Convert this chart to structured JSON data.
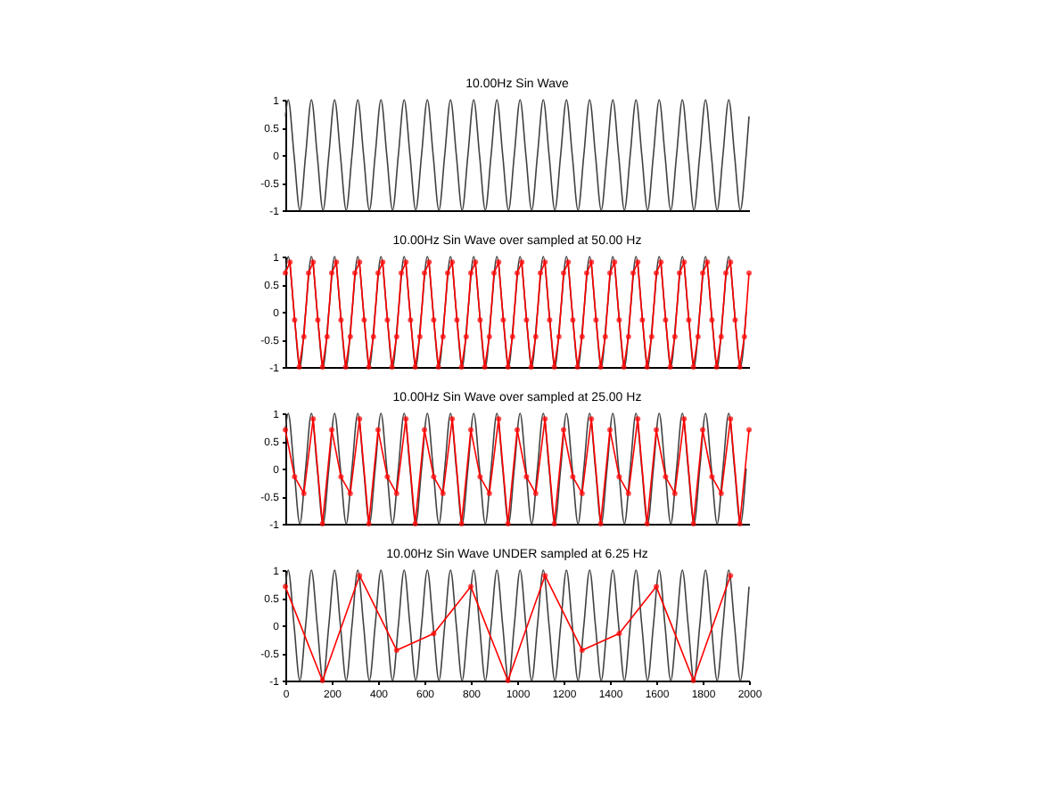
{
  "chart_data": [
    {
      "type": "line",
      "title": "10.00Hz Sin Wave",
      "xlim": [
        0,
        2000
      ],
      "ylim": [
        -1,
        1
      ],
      "yticks": [
        -1,
        -0.5,
        0,
        0.5,
        1
      ],
      "tick_labels": "y",
      "series": [
        {
          "color": "#404040",
          "marker": "none",
          "x": [
            0,
            12.5,
            37.5,
            62.5,
            87.5,
            112.5,
            137.5,
            162.5,
            187.5,
            212.5,
            237.5,
            262.5,
            287.5,
            312.5,
            337.5,
            362.5,
            387.5,
            412.5,
            437.5,
            462.5,
            487.5,
            512.5,
            537.5,
            562.5,
            587.5,
            612.5,
            637.5,
            662.5,
            687.5,
            712.5,
            737.5,
            762.5,
            787.5,
            812.5,
            837.5,
            862.5,
            887.5,
            912.5,
            937.5,
            962.5,
            987.5,
            1012.5,
            1037.5,
            1062.5,
            1087.5,
            1112.5,
            1137.5,
            1162.5,
            1187.5,
            1212.5,
            1237.5,
            1262.5,
            1287.5,
            1312.5,
            1337.5,
            1362.5,
            1387.5,
            1412.5,
            1437.5,
            1462.5,
            1487.5,
            1512.5,
            1537.5,
            1562.5,
            1587.5,
            1612.5,
            1637.5,
            1662.5,
            1687.5,
            1712.5,
            1737.5,
            1762.5,
            1787.5,
            1812.5,
            1837.5,
            1862.5,
            1887.5,
            1912.5,
            1937.5,
            1962.5,
            1987.5,
            2000
          ],
          "values": [
            0.7,
            1,
            0,
            -1,
            0,
            1,
            0,
            -1,
            0,
            1,
            0,
            -1,
            0,
            1,
            0,
            -1,
            0,
            1,
            0,
            -1,
            0,
            1,
            0,
            -1,
            0,
            1,
            0,
            -1,
            0,
            1,
            0,
            -1,
            0,
            1,
            0,
            -1,
            0,
            1,
            0,
            -1,
            0,
            1,
            0,
            -1,
            0,
            1,
            0,
            -1,
            0,
            1,
            0,
            -1,
            0,
            1,
            0,
            -1,
            0,
            1,
            0,
            -1,
            0,
            1,
            0,
            -1,
            0,
            1,
            0,
            -1,
            0,
            1,
            0,
            -1,
            0,
            1,
            0,
            -1,
            0,
            1,
            0,
            -1,
            0,
            0.7
          ]
        }
      ]
    },
    {
      "type": "line",
      "title": "10.00Hz Sin Wave over sampled at 50.00 Hz",
      "xlim": [
        0,
        2000
      ],
      "ylim": [
        -1,
        1
      ],
      "yticks": [
        -1,
        -0.5,
        0,
        0.5,
        1
      ],
      "tick_labels": "y",
      "series": [
        {
          "color": "#404040",
          "marker": "none",
          "x": [
            0,
            12.5,
            37.5,
            62.5,
            87.5,
            112.5,
            137.5,
            162.5,
            187.5,
            212.5,
            237.5,
            262.5,
            287.5,
            312.5,
            337.5,
            362.5,
            387.5,
            412.5,
            437.5,
            462.5,
            487.5,
            512.5,
            537.5,
            562.5,
            587.5,
            612.5,
            637.5,
            662.5,
            687.5,
            712.5,
            737.5,
            762.5,
            787.5,
            812.5,
            837.5,
            862.5,
            887.5,
            912.5,
            937.5,
            962.5,
            987.5,
            1012.5,
            1037.5,
            1062.5,
            1087.5,
            1112.5,
            1137.5,
            1162.5,
            1187.5,
            1212.5,
            1237.5,
            1262.5,
            1287.5,
            1312.5,
            1337.5,
            1362.5,
            1387.5,
            1412.5,
            1437.5,
            1462.5,
            1487.5,
            1512.5,
            1537.5,
            1562.5,
            1587.5,
            1612.5,
            1637.5,
            1662.5,
            1687.5,
            1712.5,
            1737.5,
            1762.5,
            1787.5,
            1812.5,
            1837.5,
            1862.5,
            1887.5,
            1912.5,
            1937.5,
            1962.5,
            1987.5
          ],
          "values": [
            0.7,
            1,
            0,
            -1,
            0,
            1,
            0,
            -1,
            0,
            1,
            0,
            -1,
            0,
            1,
            0,
            -1,
            0,
            1,
            0,
            -1,
            0,
            1,
            0,
            -1,
            0,
            1,
            0,
            -1,
            0,
            1,
            0,
            -1,
            0,
            1,
            0,
            -1,
            0,
            1,
            0,
            -1,
            0,
            1,
            0,
            -1,
            0,
            1,
            0,
            -1,
            0,
            1,
            0,
            -1,
            0,
            1,
            0,
            -1,
            0,
            1,
            0,
            -1,
            0,
            1,
            0,
            -1,
            0,
            1,
            0,
            -1,
            0,
            1,
            0,
            -1,
            0,
            1,
            0,
            -1,
            0,
            1,
            0,
            -1,
            0
          ]
        },
        {
          "color": "#ff0000",
          "marker": "circle",
          "x": [
            0,
            20,
            40,
            60,
            80,
            100,
            120,
            140,
            160,
            180,
            200,
            220,
            240,
            260,
            280,
            300,
            320,
            340,
            360,
            380,
            400,
            420,
            440,
            460,
            480,
            500,
            520,
            540,
            560,
            580,
            600,
            620,
            640,
            660,
            680,
            700,
            720,
            740,
            760,
            780,
            800,
            820,
            840,
            860,
            880,
            900,
            920,
            940,
            960,
            980,
            1000,
            1020,
            1040,
            1060,
            1080,
            1100,
            1120,
            1140,
            1160,
            1180,
            1200,
            1220,
            1240,
            1260,
            1280,
            1300,
            1320,
            1340,
            1360,
            1380,
            1400,
            1420,
            1440,
            1460,
            1480,
            1500,
            1520,
            1540,
            1560,
            1580,
            1600,
            1620,
            1640,
            1660,
            1680,
            1700,
            1720,
            1740,
            1760,
            1780,
            1800,
            1820,
            1840,
            1860,
            1880,
            1900,
            1920,
            1940,
            1960,
            1980,
            2000
          ],
          "values": [
            0.7,
            0.9,
            -0.15,
            -1,
            -0.45,
            0.7,
            0.9,
            -0.15,
            -1,
            -0.45,
            0.7,
            0.9,
            -0.15,
            -1,
            -0.45,
            0.7,
            0.9,
            -0.15,
            -1,
            -0.45,
            0.7,
            0.9,
            -0.15,
            -1,
            -0.45,
            0.7,
            0.9,
            -0.15,
            -1,
            -0.45,
            0.7,
            0.9,
            -0.15,
            -1,
            -0.45,
            0.7,
            0.9,
            -0.15,
            -1,
            -0.45,
            0.7,
            0.9,
            -0.15,
            -1,
            -0.45,
            0.7,
            0.9,
            -0.15,
            -1,
            -0.45,
            0.7,
            0.9,
            -0.15,
            -1,
            -0.45,
            0.7,
            0.9,
            -0.15,
            -1,
            -0.45,
            0.7,
            0.9,
            -0.15,
            -1,
            -0.45,
            0.7,
            0.9,
            -0.15,
            -1,
            -0.45,
            0.7,
            0.9,
            -0.15,
            -1,
            -0.45,
            0.7,
            0.9,
            -0.15,
            -1,
            -0.45,
            0.7,
            0.9,
            -0.15,
            -1,
            -0.45,
            0.7,
            0.9,
            -0.15,
            -1,
            -0.45,
            0.7,
            0.9,
            -0.15,
            -1,
            -0.45,
            0.7,
            0.9,
            -0.15,
            -1,
            -0.45,
            0.7
          ]
        }
      ]
    },
    {
      "type": "line",
      "title": "10.00Hz Sin Wave over sampled at 25.00 Hz",
      "xlim": [
        0,
        2000
      ],
      "ylim": [
        -1,
        1
      ],
      "yticks": [
        -1,
        -0.5,
        0,
        0.5,
        1
      ],
      "tick_labels": "y",
      "series": [
        {
          "color": "#404040",
          "marker": "none",
          "x": [
            0,
            12.5,
            37.5,
            62.5,
            87.5,
            112.5,
            137.5,
            162.5,
            187.5,
            212.5,
            237.5,
            262.5,
            287.5,
            312.5,
            337.5,
            362.5,
            387.5,
            412.5,
            437.5,
            462.5,
            487.5,
            512.5,
            537.5,
            562.5,
            587.5,
            612.5,
            637.5,
            662.5,
            687.5,
            712.5,
            737.5,
            762.5,
            787.5,
            812.5,
            837.5,
            862.5,
            887.5,
            912.5,
            937.5,
            962.5,
            987.5,
            1012.5,
            1037.5,
            1062.5,
            1087.5,
            1112.5,
            1137.5,
            1162.5,
            1187.5,
            1212.5,
            1237.5,
            1262.5,
            1287.5,
            1312.5,
            1337.5,
            1362.5,
            1387.5,
            1412.5,
            1437.5,
            1462.5,
            1487.5,
            1512.5,
            1537.5,
            1562.5,
            1587.5,
            1612.5,
            1637.5,
            1662.5,
            1687.5,
            1712.5,
            1737.5,
            1762.5,
            1787.5,
            1812.5,
            1837.5,
            1862.5,
            1887.5,
            1912.5,
            1937.5,
            1962.5,
            1987.5
          ],
          "values": [
            0.7,
            1,
            0,
            -1,
            0,
            1,
            0,
            -1,
            0,
            1,
            0,
            -1,
            0,
            1,
            0,
            -1,
            0,
            1,
            0,
            -1,
            0,
            1,
            0,
            -1,
            0,
            1,
            0,
            -1,
            0,
            1,
            0,
            -1,
            0,
            1,
            0,
            -1,
            0,
            1,
            0,
            -1,
            0,
            1,
            0,
            -1,
            0,
            1,
            0,
            -1,
            0,
            1,
            0,
            -1,
            0,
            1,
            0,
            -1,
            0,
            1,
            0,
            -1,
            0,
            1,
            0,
            -1,
            0,
            1,
            0,
            -1,
            0,
            1,
            0,
            -1,
            0,
            1,
            0,
            -1,
            0,
            1,
            0,
            -1,
            0
          ]
        },
        {
          "color": "#ff0000",
          "marker": "circle",
          "x": [
            0,
            40,
            80,
            120,
            160,
            200,
            240,
            280,
            320,
            360,
            400,
            440,
            480,
            520,
            560,
            600,
            640,
            680,
            720,
            760,
            800,
            840,
            880,
            920,
            960,
            1000,
            1040,
            1080,
            1120,
            1160,
            1200,
            1240,
            1280,
            1320,
            1360,
            1400,
            1440,
            1480,
            1520,
            1560,
            1600,
            1640,
            1680,
            1720,
            1760,
            1800,
            1840,
            1880,
            1920,
            1960,
            2000
          ],
          "values": [
            0.7,
            -0.15,
            -0.45,
            0.9,
            -1,
            0.7,
            -0.15,
            -0.45,
            0.9,
            -1,
            0.7,
            -0.15,
            -0.45,
            0.9,
            -1,
            0.7,
            -0.15,
            -0.45,
            0.9,
            -1,
            0.7,
            -0.15,
            -0.45,
            0.9,
            -1,
            0.7,
            -0.15,
            -0.45,
            0.9,
            -1,
            0.7,
            -0.15,
            -0.45,
            0.9,
            -1,
            0.7,
            -0.15,
            -0.45,
            0.9,
            -1,
            0.7,
            -0.15,
            -0.45,
            0.9,
            -1,
            0.7,
            -0.15,
            -0.45,
            0.9,
            -1,
            0.7
          ]
        }
      ]
    },
    {
      "type": "line",
      "title": "10.00Hz Sin Wave UNDER sampled at 6.25 Hz",
      "xlim": [
        0,
        2000
      ],
      "xticks": [
        0,
        200,
        400,
        600,
        800,
        1000,
        1200,
        1400,
        1600,
        1800,
        2000
      ],
      "ylim": [
        -1,
        1
      ],
      "yticks": [
        -1,
        -0.5,
        0,
        0.5,
        1
      ],
      "series": [
        {
          "color": "#404040",
          "marker": "none",
          "x": [
            0,
            12.5,
            37.5,
            62.5,
            87.5,
            112.5,
            137.5,
            162.5,
            187.5,
            212.5,
            237.5,
            262.5,
            287.5,
            312.5,
            337.5,
            362.5,
            387.5,
            412.5,
            437.5,
            462.5,
            487.5,
            512.5,
            537.5,
            562.5,
            587.5,
            612.5,
            637.5,
            662.5,
            687.5,
            712.5,
            737.5,
            762.5,
            787.5,
            812.5,
            837.5,
            862.5,
            887.5,
            912.5,
            937.5,
            962.5,
            987.5,
            1012.5,
            1037.5,
            1062.5,
            1087.5,
            1112.5,
            1137.5,
            1162.5,
            1187.5,
            1212.5,
            1237.5,
            1262.5,
            1287.5,
            1312.5,
            1337.5,
            1362.5,
            1387.5,
            1412.5,
            1437.5,
            1462.5,
            1487.5,
            1512.5,
            1537.5,
            1562.5,
            1587.5,
            1612.5,
            1637.5,
            1662.5,
            1687.5,
            1712.5,
            1737.5,
            1762.5,
            1787.5,
            1812.5,
            1837.5,
            1862.5,
            1887.5,
            1912.5,
            1937.5,
            1962.5,
            1987.5,
            2000
          ],
          "values": [
            0.7,
            1,
            0,
            -1,
            0,
            1,
            0,
            -1,
            0,
            1,
            0,
            -1,
            0,
            1,
            0,
            -1,
            0,
            1,
            0,
            -1,
            0,
            1,
            0,
            -1,
            0,
            1,
            0,
            -1,
            0,
            1,
            0,
            -1,
            0,
            1,
            0,
            -1,
            0,
            1,
            0,
            -1,
            0,
            1,
            0,
            -1,
            0,
            1,
            0,
            -1,
            0,
            1,
            0,
            -1,
            0,
            1,
            0,
            -1,
            0,
            1,
            0,
            -1,
            0,
            1,
            0,
            -1,
            0,
            1,
            0,
            -1,
            0,
            1,
            0,
            -1,
            0,
            1,
            0,
            -1,
            0,
            1,
            0,
            -1,
            0,
            0.7
          ]
        },
        {
          "color": "#ff0000",
          "marker": "circle",
          "x": [
            0,
            160,
            320,
            480,
            640,
            800,
            960,
            1120,
            1280,
            1440,
            1600,
            1760,
            1920
          ],
          "values": [
            0.7,
            -1,
            0.9,
            -0.45,
            -0.15,
            0.7,
            -1,
            0.9,
            -0.45,
            -0.15,
            0.7,
            -1,
            0.9
          ]
        }
      ]
    }
  ]
}
